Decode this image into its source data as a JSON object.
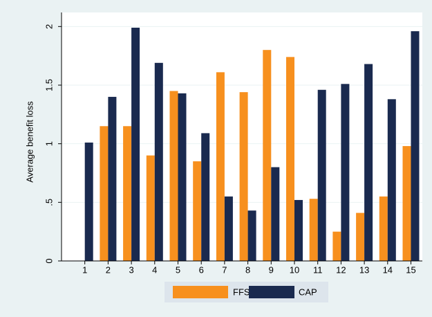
{
  "chart_data": {
    "type": "bar",
    "y_label": "Average benefit loss",
    "categories": [
      "1",
      "2",
      "3",
      "4",
      "5",
      "6",
      "7",
      "8",
      "9",
      "10",
      "11",
      "12",
      "13",
      "14",
      "15"
    ],
    "series": [
      {
        "name": "FFS",
        "color": "#f7901e",
        "values": [
          0,
          1.15,
          1.15,
          0.9,
          1.45,
          0.85,
          1.61,
          1.44,
          1.8,
          1.74,
          0.53,
          0.25,
          0.41,
          0.55,
          0.98
        ]
      },
      {
        "name": "CAP",
        "color": "#1a2a4f",
        "values": [
          1.01,
          1.4,
          1.99,
          1.69,
          1.43,
          1.09,
          0.55,
          0.43,
          0.8,
          0.52,
          1.46,
          1.51,
          1.68,
          1.38,
          1.96
        ]
      }
    ],
    "ylim": [
      0,
      2.12
    ],
    "yticks": [
      0,
      {
        "value": 0.5,
        "label": ".5"
      },
      1,
      1.5,
      2
    ],
    "grid": true,
    "legend": "bottom"
  }
}
